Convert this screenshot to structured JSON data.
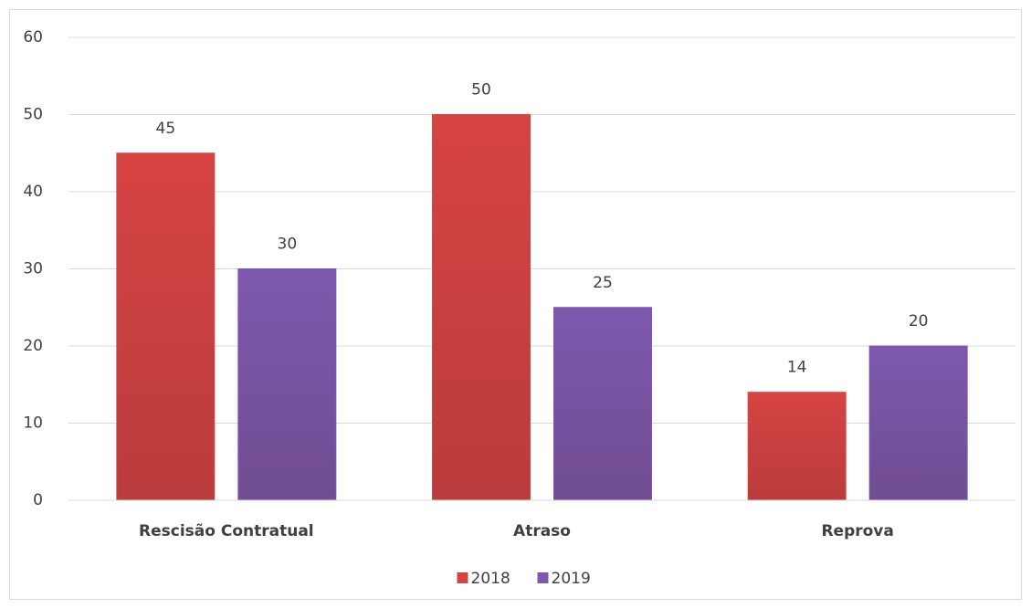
{
  "chart_data": {
    "type": "bar",
    "categories": [
      "Rescisão Contratual",
      "Atraso",
      "Reprova"
    ],
    "series": [
      {
        "name": "2018",
        "color": "#d64343",
        "values": [
          45,
          50,
          14
        ]
      },
      {
        "name": "2019",
        "color": "#7d58ad",
        "values": [
          30,
          25,
          20
        ]
      }
    ],
    "ylim": [
      0,
      60
    ],
    "yticks": [
      0,
      10,
      20,
      30,
      40,
      50,
      60
    ],
    "grid": true,
    "legend": "bottom"
  }
}
